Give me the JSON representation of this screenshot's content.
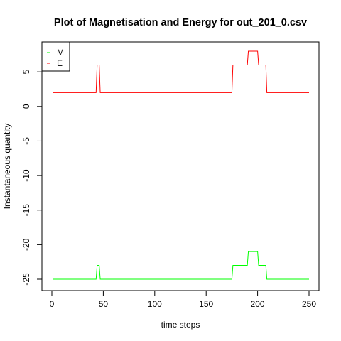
{
  "chart_data": {
    "type": "line",
    "title": "Plot of Magnetisation and Energy for out_201_0.csv",
    "xlabel": "time steps",
    "ylabel": "Instantaneous quantity",
    "xlim": [
      0,
      250
    ],
    "ylim": [
      -25,
      8
    ],
    "xticks": [
      0,
      50,
      100,
      150,
      200,
      250
    ],
    "yticks": [
      -25,
      -20,
      -15,
      -10,
      -5,
      0,
      5
    ],
    "legend_position": "top-left",
    "series": [
      {
        "name": "M",
        "color": "#00ff00",
        "x": [
          1,
          43,
          44,
          46,
          47,
          175,
          176,
          190,
          191,
          200,
          201,
          205,
          206,
          208,
          209,
          250
        ],
        "y": [
          -25,
          -25,
          -23,
          -23,
          -25,
          -25,
          -23,
          -23,
          -21,
          -21,
          -23,
          -23,
          -23,
          -23,
          -25,
          -25
        ]
      },
      {
        "name": "E",
        "color": "#ff0000",
        "x": [
          1,
          43,
          44,
          46,
          47,
          175,
          176,
          190,
          191,
          200,
          201,
          205,
          206,
          208,
          209,
          250
        ],
        "y": [
          2,
          2,
          6,
          6,
          2,
          2,
          6,
          6,
          8,
          8,
          6,
          6,
          6,
          6,
          2,
          2
        ]
      }
    ]
  }
}
